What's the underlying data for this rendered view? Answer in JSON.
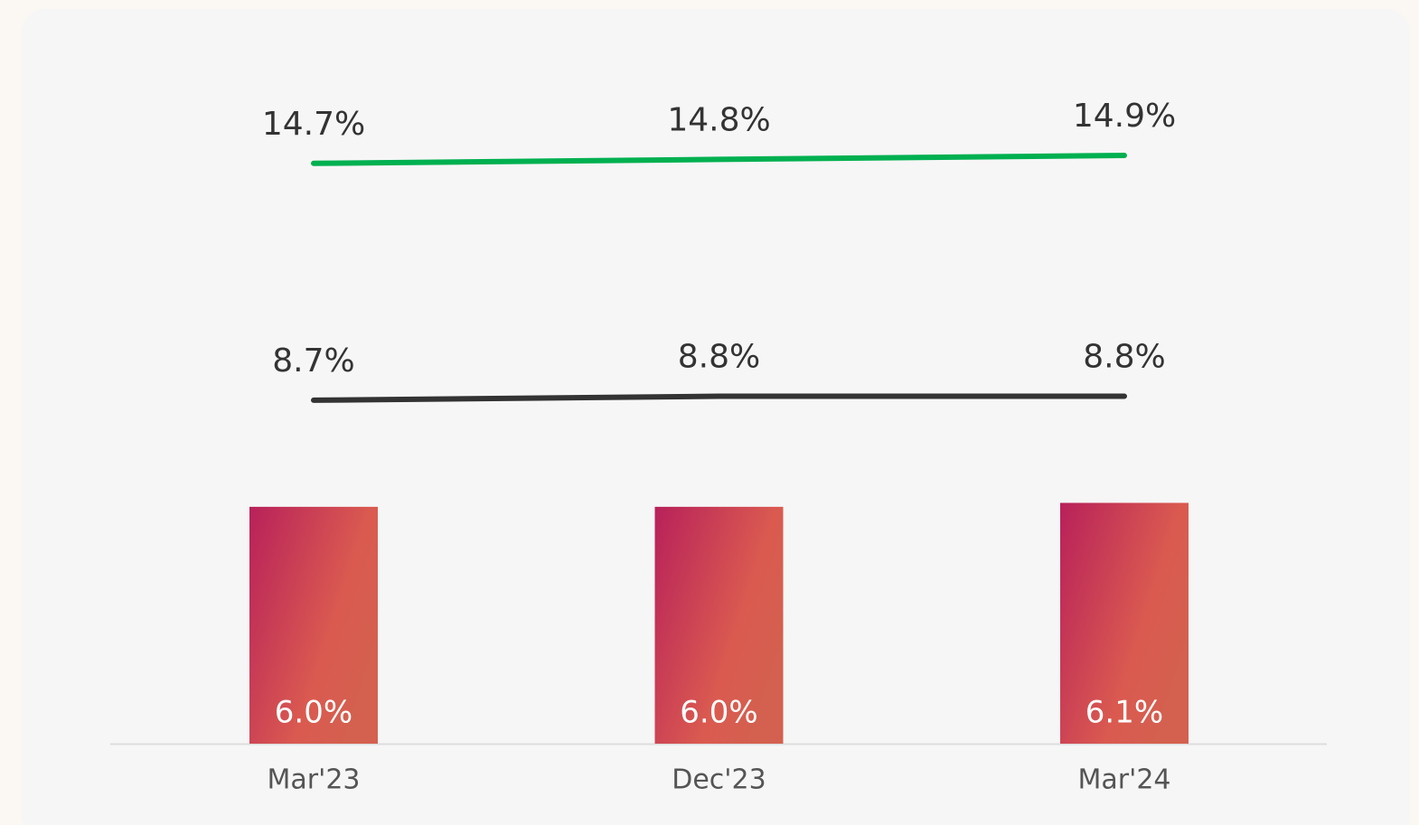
{
  "chart_data": {
    "type": "bar",
    "categories": [
      "Mar'23",
      "Dec'23",
      "Mar'24"
    ],
    "ylim": [
      0,
      16
    ],
    "series": [
      {
        "type": "bar",
        "color": "#b8215a",
        "values": [
          6.0,
          6.0,
          6.1
        ],
        "value_labels": [
          "6.0%",
          "6.0%",
          "6.1%"
        ]
      },
      {
        "type": "line",
        "color": "#333333",
        "values": [
          8.7,
          8.8,
          8.8
        ],
        "value_labels": [
          "8.7%",
          "8.8%",
          "8.8%"
        ]
      },
      {
        "type": "line",
        "color": "#00b050",
        "values": [
          14.7,
          14.8,
          14.9
        ],
        "value_labels": [
          "14.7%",
          "14.8%",
          "14.9%"
        ]
      }
    ]
  }
}
